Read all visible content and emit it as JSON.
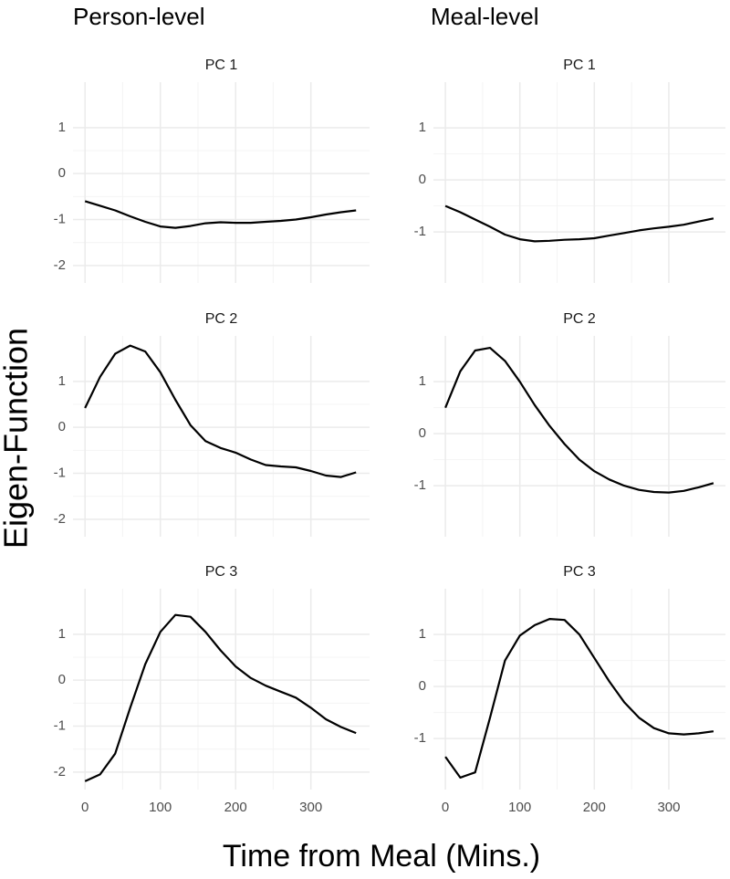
{
  "column_titles": [
    "Person-level",
    "Meal-level"
  ],
  "ylabel": "Eigen-Function",
  "xlabel": "Time from Meal (Mins.)",
  "chart_data": [
    {
      "type": "line",
      "title": "PC 1",
      "x": [
        0,
        20,
        40,
        60,
        80,
        100,
        120,
        140,
        160,
        180,
        200,
        220,
        240,
        260,
        280,
        300,
        320,
        340,
        360
      ],
      "series": [
        {
          "color": "#000000",
          "values": [
            -0.6,
            -0.7,
            -0.8,
            -0.93,
            -1.05,
            -1.15,
            -1.18,
            -1.14,
            -1.08,
            -1.06,
            -1.07,
            -1.07,
            -1.05,
            -1.03,
            -1.0,
            -0.95,
            -0.89,
            -0.84,
            -0.8
          ]
        }
      ],
      "xlim": [
        -16,
        378
      ],
      "xticks": [
        0,
        100,
        200,
        300
      ],
      "ylim": [
        -2.38,
        1.99
      ],
      "yticks": [
        -2,
        -1,
        0,
        1
      ],
      "grid": true
    },
    {
      "type": "line",
      "title": "PC 1",
      "x": [
        0,
        20,
        40,
        60,
        80,
        100,
        120,
        140,
        160,
        180,
        200,
        220,
        240,
        260,
        280,
        300,
        320,
        340,
        360
      ],
      "series": [
        {
          "color": "#000000",
          "values": [
            -0.5,
            -0.62,
            -0.76,
            -0.9,
            -1.05,
            -1.14,
            -1.18,
            -1.17,
            -1.15,
            -1.14,
            -1.12,
            -1.07,
            -1.02,
            -0.97,
            -0.93,
            -0.9,
            -0.86,
            -0.8,
            -0.74
          ]
        }
      ],
      "xlim": [
        -16,
        376
      ],
      "xticks": [
        0,
        100,
        200,
        300
      ],
      "ylim": [
        -1.98,
        1.88
      ],
      "yticks": [
        -1,
        0,
        1
      ],
      "grid": true
    },
    {
      "type": "line",
      "title": "PC 2",
      "x": [
        0,
        20,
        40,
        60,
        80,
        100,
        120,
        140,
        160,
        180,
        200,
        220,
        240,
        260,
        280,
        300,
        320,
        340,
        360
      ],
      "series": [
        {
          "color": "#000000",
          "values": [
            0.42,
            1.1,
            1.6,
            1.78,
            1.65,
            1.2,
            0.6,
            0.05,
            -0.3,
            -0.45,
            -0.55,
            -0.7,
            -0.82,
            -0.85,
            -0.87,
            -0.95,
            -1.05,
            -1.08,
            -0.98
          ]
        }
      ],
      "xlim": [
        -16,
        378
      ],
      "xticks": [
        0,
        100,
        200,
        300
      ],
      "ylim": [
        -2.38,
        1.99
      ],
      "yticks": [
        -2,
        -1,
        0,
        1
      ],
      "grid": true
    },
    {
      "type": "line",
      "title": "PC 2",
      "x": [
        0,
        20,
        40,
        60,
        80,
        100,
        120,
        140,
        160,
        180,
        200,
        220,
        240,
        260,
        280,
        300,
        320,
        340,
        360
      ],
      "series": [
        {
          "color": "#000000",
          "values": [
            0.5,
            1.2,
            1.6,
            1.65,
            1.4,
            1.0,
            0.55,
            0.15,
            -0.2,
            -0.5,
            -0.72,
            -0.88,
            -1.0,
            -1.08,
            -1.12,
            -1.13,
            -1.1,
            -1.03,
            -0.95
          ]
        }
      ],
      "xlim": [
        -16,
        376
      ],
      "xticks": [
        0,
        100,
        200,
        300
      ],
      "ylim": [
        -1.98,
        1.88
      ],
      "yticks": [
        -1,
        0,
        1
      ],
      "grid": true
    },
    {
      "type": "line",
      "title": "PC 3",
      "x": [
        0,
        20,
        40,
        60,
        80,
        100,
        120,
        140,
        160,
        180,
        200,
        220,
        240,
        260,
        280,
        300,
        320,
        340,
        360
      ],
      "series": [
        {
          "color": "#000000",
          "values": [
            -2.2,
            -2.05,
            -1.6,
            -0.6,
            0.35,
            1.05,
            1.42,
            1.38,
            1.05,
            0.65,
            0.3,
            0.05,
            -0.12,
            -0.25,
            -0.38,
            -0.6,
            -0.85,
            -1.02,
            -1.15
          ]
        }
      ],
      "xlim": [
        -16,
        378
      ],
      "xticks": [
        0,
        100,
        200,
        300
      ],
      "ylim": [
        -2.38,
        1.99
      ],
      "yticks": [
        -2,
        -1,
        0,
        1
      ],
      "grid": true
    },
    {
      "type": "line",
      "title": "PC 3",
      "x": [
        0,
        20,
        40,
        60,
        80,
        100,
        120,
        140,
        160,
        180,
        200,
        220,
        240,
        260,
        280,
        300,
        320,
        340,
        360
      ],
      "series": [
        {
          "color": "#000000",
          "values": [
            -1.35,
            -1.75,
            -1.65,
            -0.6,
            0.5,
            0.98,
            1.18,
            1.3,
            1.28,
            1.0,
            0.55,
            0.1,
            -0.3,
            -0.6,
            -0.8,
            -0.9,
            -0.92,
            -0.9,
            -0.86
          ]
        }
      ],
      "xlim": [
        -16,
        376
      ],
      "xticks": [
        0,
        100,
        200,
        300
      ],
      "ylim": [
        -1.98,
        1.88
      ],
      "yticks": [
        -1,
        0,
        1
      ],
      "grid": true
    }
  ]
}
